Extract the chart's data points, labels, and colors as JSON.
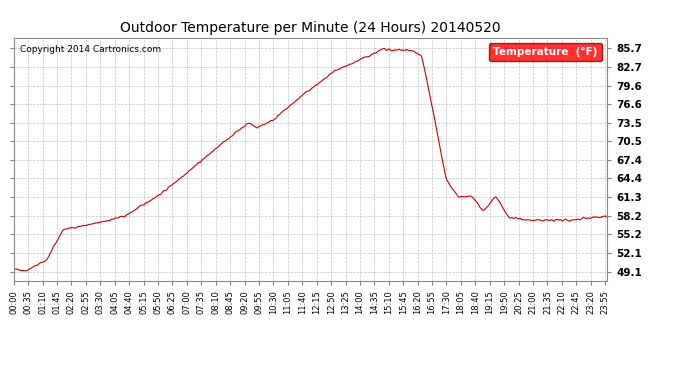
{
  "title": "Outdoor Temperature per Minute (24 Hours) 20140520",
  "copyright_text": "Copyright 2014 Cartronics.com",
  "legend_label": "Temperature  (°F)",
  "line_color": "#cc0000",
  "background_color": "#ffffff",
  "grid_color": "#bbbbbb",
  "yticks": [
    49.1,
    52.1,
    55.2,
    58.2,
    61.3,
    64.4,
    67.4,
    70.5,
    73.5,
    76.6,
    79.6,
    82.7,
    85.7
  ],
  "ylim": [
    47.5,
    87.5
  ],
  "xtick_labels": [
    "00:00",
    "00:35",
    "01:10",
    "01:45",
    "02:20",
    "02:55",
    "03:30",
    "04:05",
    "04:40",
    "05:15",
    "05:50",
    "06:25",
    "07:00",
    "07:35",
    "08:10",
    "08:45",
    "09:20",
    "09:55",
    "10:30",
    "11:05",
    "11:40",
    "12:15",
    "12:50",
    "13:25",
    "14:00",
    "14:35",
    "15:10",
    "15:45",
    "16:20",
    "16:55",
    "17:30",
    "18:05",
    "18:40",
    "19:15",
    "19:50",
    "20:25",
    "21:00",
    "21:35",
    "22:10",
    "22:45",
    "23:20",
    "23:55"
  ],
  "num_points": 1440
}
